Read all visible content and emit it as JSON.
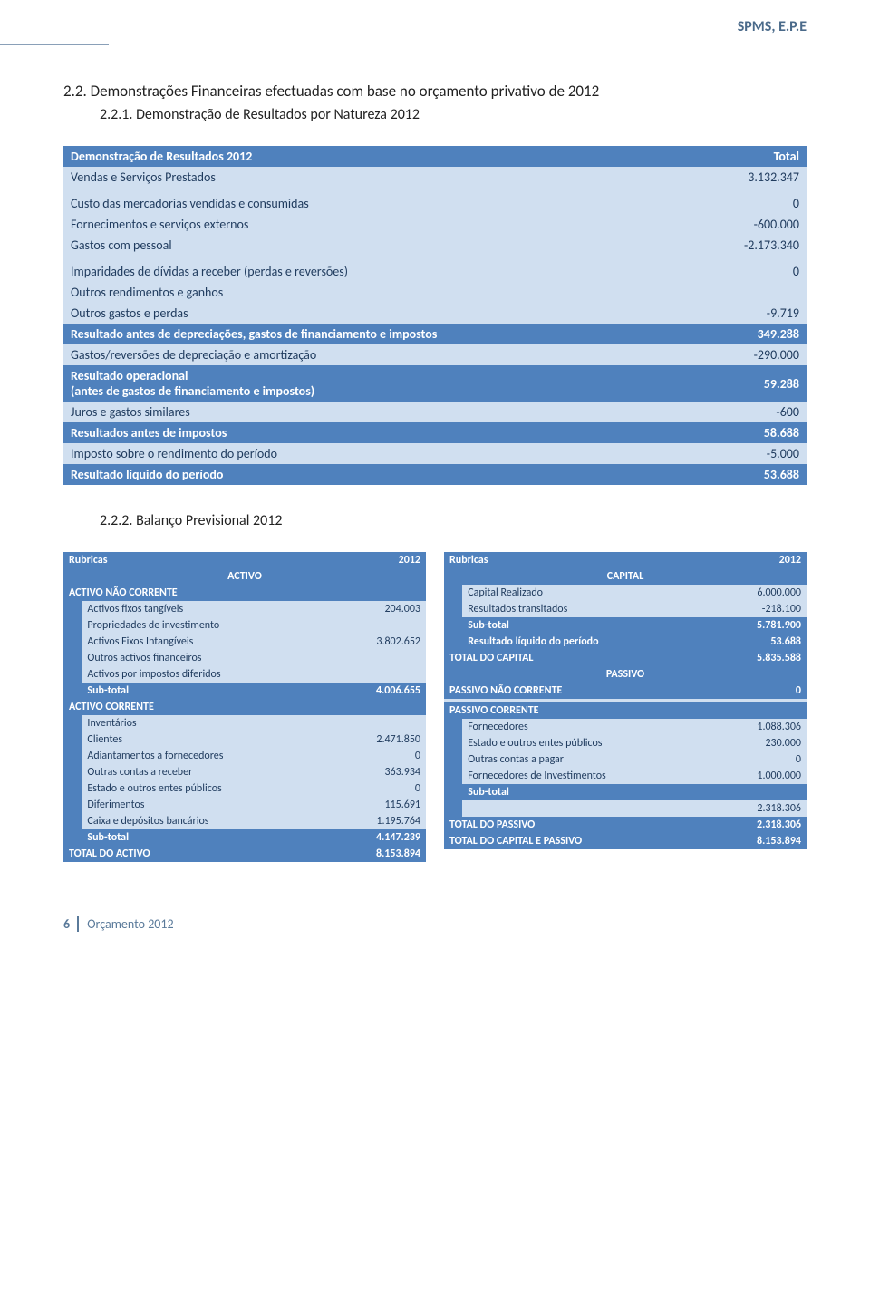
{
  "header_tag": "SPMS, E.P.E",
  "section_title": "2.2. Demonstrações Financeiras efectuadas com base no orçamento privativo de 2012",
  "subsection221": "2.2.1. Demonstração de Resultados por Natureza 2012",
  "subsection222": "2.2.2. Balanço Previsional 2012",
  "footer": {
    "page": "6",
    "text": "Orçamento 2012"
  },
  "demo": {
    "header_left": "Demonstração de Resultados 2012",
    "header_right": "Total",
    "rows": [
      {
        "label": "Vendas e Serviços Prestados",
        "value": "3.132.347",
        "style": "pale"
      },
      {
        "label": "",
        "value": "",
        "style": "pale"
      },
      {
        "label": "Custo das mercadorias vendidas e consumidas",
        "value": "0",
        "style": "pale"
      },
      {
        "label": "Fornecimentos e serviços externos",
        "value": "-600.000",
        "style": "pale"
      },
      {
        "label": "Gastos com pessoal",
        "value": "-2.173.340",
        "style": "pale"
      },
      {
        "label": "",
        "value": "",
        "style": "pale"
      },
      {
        "label": "Imparidades de dívidas a receber (perdas e reversões)",
        "value": "0",
        "style": "pale"
      },
      {
        "label": "Outros rendimentos e ganhos",
        "value": "",
        "style": "pale"
      },
      {
        "label": "Outros gastos e perdas",
        "value": "-9.719",
        "style": "pale"
      },
      {
        "label": "Resultado antes de depreciações, gastos de financiamento e impostos",
        "value": "349.288",
        "style": "hdr"
      },
      {
        "label": "Gastos/reversões de depreciação e amortização",
        "value": "-290.000",
        "style": "pale"
      },
      {
        "label": "Resultado operacional\n(antes de gastos de financiamento e impostos)",
        "value": "59.288",
        "style": "hdr"
      },
      {
        "label": "Juros e gastos similares",
        "value": "-600",
        "style": "pale"
      },
      {
        "label": "Resultados antes de impostos",
        "value": "58.688",
        "style": "hdr"
      },
      {
        "label": "Imposto sobre o rendimento do período",
        "value": "-5.000",
        "style": "pale"
      },
      {
        "label": "Resultado líquido do período",
        "value": "53.688",
        "style": "hdr"
      }
    ]
  },
  "balance": {
    "left": {
      "head_l": "Rubricas",
      "head_r": "2012",
      "section1": "ACTIVO",
      "nc_head": "ACTIVO NÃO CORRENTE",
      "nc_rows": [
        {
          "label": "Activos fixos tangíveis",
          "value": "204.003"
        },
        {
          "label": "Propriedades de investimento",
          "value": ""
        },
        {
          "label": "Activos Fixos Intangíveis",
          "value": "3.802.652"
        },
        {
          "label": "Outros activos financeiros",
          "value": ""
        },
        {
          "label": "Activos por impostos diferidos",
          "value": ""
        }
      ],
      "nc_sub_l": "Sub-total",
      "nc_sub_v": "4.006.655",
      "c_head": "ACTIVO CORRENTE",
      "c_rows": [
        {
          "label": "Inventários",
          "value": ""
        },
        {
          "label": "Clientes",
          "value": "2.471.850"
        },
        {
          "label": "Adiantamentos a fornecedores",
          "value": "0"
        },
        {
          "label": "Outras contas a receber",
          "value": "363.934"
        },
        {
          "label": "Estado e outros entes públicos",
          "value": "0"
        },
        {
          "label": "Diferimentos",
          "value": "115.691"
        },
        {
          "label": "Caixa e depósitos bancários",
          "value": "1.195.764"
        }
      ],
      "c_sub_l": "Sub-total",
      "c_sub_v": "4.147.239",
      "total_l": "TOTAL DO ACTIVO",
      "total_v": "8.153.894"
    },
    "right": {
      "head_l": "Rubricas",
      "head_r": "2012",
      "section1": "CAPITAL",
      "cap_rows": [
        {
          "label": "Capital Realizado",
          "value": "6.000.000"
        },
        {
          "label": "Resultados transitados",
          "value": "-218.100"
        }
      ],
      "cap_sub_l": "Sub-total",
      "cap_sub_v": "5.781.900",
      "rlp_l": "Resultado líquido do período",
      "rlp_v": "53.688",
      "tot_cap_l": "TOTAL DO CAPITAL",
      "tot_cap_v": "5.835.588",
      "passivo_hdr": "PASSIVO",
      "pnc_l": "PASSIVO NÃO CORRENTE",
      "pnc_v": "0",
      "blank": "",
      "pc_head": "PASSIVO CORRENTE",
      "pc_rows": [
        {
          "label": "Fornecedores",
          "value": "1.088.306"
        },
        {
          "label": "Estado e outros entes públicos",
          "value": "230.000"
        },
        {
          "label": "Outras contas a pagar",
          "value": "0"
        },
        {
          "label": "Fornecedores de Investimentos",
          "value": "1.000.000"
        }
      ],
      "pc_sub_l": "Sub-total",
      "pc_sub_v": "",
      "pc_line_v": "2.318.306",
      "tot_passivo_l": "TOTAL DO PASSIVO",
      "tot_passivo_v": "2.318.306",
      "tot_cp_l": "TOTAL DO CAPITAL E PASSIVO",
      "tot_cp_v": "8.153.894"
    }
  },
  "colors": {
    "header_bg": "#4f81bd",
    "pale_bg": "#d0dff0",
    "header_text": "#ffffff",
    "pale_text": "#1f3b5e",
    "brand_text": "#4a6a8a"
  }
}
